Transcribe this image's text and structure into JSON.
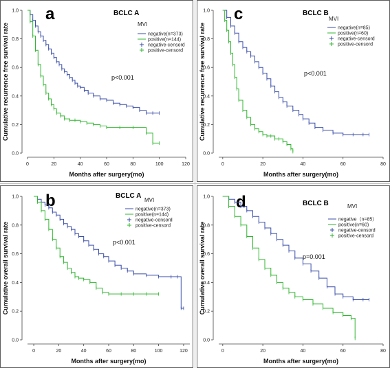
{
  "colors": {
    "negative": "#3a4ea8",
    "positive": "#2fb52f",
    "panel_border": "#333333",
    "divider": "#bbbbbb"
  },
  "chart_data": [
    {
      "type": "line",
      "step": true,
      "letter": "a",
      "subtitle": "BCLC  A",
      "legend_title": "MVI",
      "xlabel": "Months after surgery(mo)",
      "ylabel": "Cumulative recurrence free survival rate",
      "xlim": [
        0,
        120
      ],
      "ylim": [
        0,
        1
      ],
      "xticks": [
        "0",
        "20",
        "40",
        "60",
        "80",
        "100",
        "120"
      ],
      "yticks": [
        "0.0",
        "0.2",
        "0.4",
        "0.6",
        "0.8",
        "1.0"
      ],
      "annotation": "p<0.001",
      "legend": [
        "negative(n=373)",
        "positive(n=144)",
        "negative-censord",
        "positive-censord"
      ],
      "series": [
        {
          "name": "negative(n=373)",
          "color_key": "negative",
          "x": [
            0,
            2,
            4,
            6,
            8,
            10,
            12,
            14,
            16,
            18,
            20,
            22,
            24,
            26,
            28,
            30,
            32,
            34,
            36,
            38,
            40,
            43,
            46,
            50,
            55,
            60,
            65,
            70,
            75,
            80,
            85,
            90,
            95,
            100
          ],
          "y": [
            1.0,
            0.97,
            0.93,
            0.89,
            0.85,
            0.82,
            0.79,
            0.76,
            0.73,
            0.7,
            0.67,
            0.64,
            0.62,
            0.59,
            0.57,
            0.55,
            0.53,
            0.51,
            0.49,
            0.47,
            0.46,
            0.44,
            0.42,
            0.4,
            0.38,
            0.37,
            0.35,
            0.34,
            0.33,
            0.32,
            0.3,
            0.28,
            0.28,
            0.28
          ]
        },
        {
          "name": "positive(n=144)",
          "color_key": "positive",
          "x": [
            0,
            2,
            4,
            6,
            8,
            10,
            12,
            14,
            16,
            18,
            20,
            22,
            25,
            28,
            32,
            36,
            40,
            45,
            50,
            55,
            60,
            70,
            80,
            90,
            95,
            100
          ],
          "y": [
            1.0,
            0.92,
            0.82,
            0.72,
            0.62,
            0.54,
            0.48,
            0.42,
            0.38,
            0.34,
            0.31,
            0.28,
            0.26,
            0.24,
            0.23,
            0.23,
            0.22,
            0.21,
            0.2,
            0.19,
            0.18,
            0.18,
            0.18,
            0.14,
            0.07,
            0.07
          ]
        }
      ]
    },
    {
      "type": "line",
      "step": true,
      "letter": "c",
      "subtitle": "BCLC  B",
      "legend_title": "MVI",
      "xlabel": "Months after surgery(mo)",
      "ylabel": "Cumulative recurrence free survival rate",
      "xlim": [
        -2,
        80
      ],
      "ylim": [
        0,
        1
      ],
      "xticks": [
        "0",
        "20",
        "40",
        "60",
        "80"
      ],
      "yticks": [
        "0.0",
        "0.2",
        "0.4",
        "0.6",
        "0.8",
        "1.0"
      ],
      "annotation": "p<0.001",
      "legend": [
        "negative(n=85)",
        "positive(n=60)",
        "negative-censord",
        "positive-censord"
      ],
      "series": [
        {
          "name": "negative(n=85)",
          "color_key": "negative",
          "x": [
            0,
            2,
            4,
            6,
            8,
            10,
            12,
            14,
            16,
            18,
            20,
            22,
            24,
            26,
            28,
            30,
            32,
            35,
            38,
            40,
            43,
            46,
            50,
            55,
            60,
            65,
            70,
            73
          ],
          "y": [
            1.0,
            0.95,
            0.89,
            0.84,
            0.78,
            0.74,
            0.71,
            0.68,
            0.64,
            0.6,
            0.56,
            0.52,
            0.47,
            0.43,
            0.39,
            0.36,
            0.33,
            0.3,
            0.27,
            0.24,
            0.21,
            0.18,
            0.16,
            0.14,
            0.13,
            0.13,
            0.13,
            0.13
          ]
        },
        {
          "name": "positive(n=60)",
          "color_key": "positive",
          "x": [
            0,
            1,
            2,
            3,
            4,
            5,
            6,
            7,
            8,
            10,
            12,
            14,
            16,
            18,
            20,
            22,
            24,
            26,
            28,
            30,
            32,
            34,
            35
          ],
          "y": [
            1.0,
            0.93,
            0.86,
            0.78,
            0.7,
            0.62,
            0.53,
            0.45,
            0.37,
            0.3,
            0.25,
            0.2,
            0.17,
            0.15,
            0.13,
            0.12,
            0.12,
            0.1,
            0.1,
            0.08,
            0.06,
            0.03,
            0.01
          ]
        }
      ]
    },
    {
      "type": "line",
      "step": true,
      "letter": "b",
      "subtitle": "BCLC A",
      "legend_title": "MVI",
      "xlabel": "Months after surgery(mo)",
      "ylabel": "Cumulative overall survival rate",
      "xlim": [
        -5,
        125
      ],
      "ylim": [
        0,
        1
      ],
      "xticks": [
        "0",
        "20",
        "40",
        "60",
        "80",
        "100",
        "120"
      ],
      "yticks": [
        "0.0",
        "0.2",
        "0.4",
        "0.6",
        "0.8",
        "1.0"
      ],
      "annotation": "p<0.001",
      "legend": [
        "negative(n=373)",
        "positive(n=144)",
        "negative-censord",
        "positive-censord"
      ],
      "series": [
        {
          "name": "negative(n=373)",
          "color_key": "negative",
          "x": [
            0,
            3,
            6,
            9,
            12,
            15,
            18,
            21,
            24,
            27,
            30,
            33,
            36,
            40,
            44,
            48,
            52,
            56,
            60,
            65,
            70,
            75,
            80,
            90,
            100,
            110,
            115,
            118,
            120
          ],
          "y": [
            1.0,
            0.98,
            0.96,
            0.94,
            0.92,
            0.89,
            0.87,
            0.84,
            0.81,
            0.79,
            0.77,
            0.74,
            0.72,
            0.69,
            0.66,
            0.63,
            0.6,
            0.58,
            0.55,
            0.52,
            0.5,
            0.48,
            0.46,
            0.45,
            0.44,
            0.44,
            0.44,
            0.22,
            0.22
          ]
        },
        {
          "name": "positive(n=144)",
          "color_key": "positive",
          "x": [
            0,
            3,
            6,
            9,
            12,
            15,
            18,
            21,
            24,
            27,
            30,
            33,
            36,
            40,
            45,
            50,
            55,
            60,
            70,
            80,
            90,
            100
          ],
          "y": [
            1.0,
            0.96,
            0.9,
            0.84,
            0.77,
            0.7,
            0.64,
            0.58,
            0.54,
            0.5,
            0.47,
            0.44,
            0.43,
            0.42,
            0.4,
            0.36,
            0.33,
            0.32,
            0.32,
            0.32,
            0.32,
            0.32
          ]
        }
      ]
    },
    {
      "type": "line",
      "step": true,
      "letter": "d",
      "subtitle": "BCLC  B",
      "legend_title": "MVI",
      "xlabel": "Months after surgery(mo)",
      "ylabel": "Cumulative overall survival rate",
      "xlim": [
        -2,
        80
      ],
      "ylim": [
        0,
        1
      ],
      "xticks": [
        "0",
        "20",
        "40",
        "60",
        "80"
      ],
      "yticks": [
        "0.0",
        "0.2",
        "0.4",
        "0.6",
        "0.8",
        "1.0"
      ],
      "annotation": "p=0.001",
      "legend": [
        "negative（n=85）",
        "positive(n=60)",
        "negative-censord",
        "positive-censord"
      ],
      "series": [
        {
          "name": "negative（n=85）",
          "color_key": "negative",
          "x": [
            0,
            3,
            6,
            9,
            12,
            15,
            18,
            21,
            24,
            27,
            30,
            33,
            36,
            40,
            44,
            48,
            52,
            56,
            60,
            65,
            70,
            73
          ],
          "y": [
            1.0,
            0.98,
            0.96,
            0.93,
            0.9,
            0.86,
            0.82,
            0.78,
            0.74,
            0.7,
            0.66,
            0.62,
            0.57,
            0.53,
            0.48,
            0.43,
            0.37,
            0.32,
            0.3,
            0.28,
            0.28,
            0.28
          ]
        },
        {
          "name": "positive(n=60)",
          "color_key": "positive",
          "x": [
            0,
            3,
            6,
            9,
            12,
            15,
            18,
            21,
            24,
            27,
            30,
            33,
            36,
            40,
            45,
            50,
            55,
            60,
            64,
            66
          ],
          "y": [
            1.0,
            0.93,
            0.86,
            0.8,
            0.72,
            0.64,
            0.56,
            0.5,
            0.45,
            0.4,
            0.36,
            0.33,
            0.3,
            0.28,
            0.25,
            0.22,
            0.19,
            0.17,
            0.15,
            0.01
          ]
        }
      ]
    }
  ]
}
